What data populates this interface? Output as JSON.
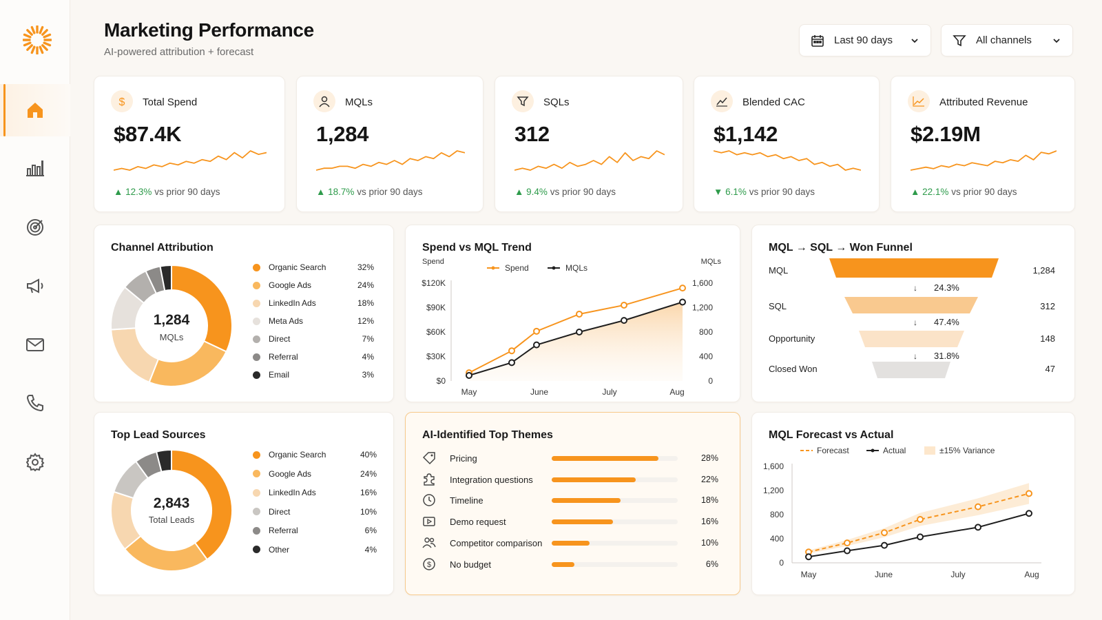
{
  "app": {
    "title": "Marketing Performance",
    "subtitle": "AI-powered attribution + forecast"
  },
  "colors": {
    "accent": "#f7941d",
    "accent_light": "#f9bc64",
    "positive": "#2e9b4b",
    "negative": "#2e9b4b"
  },
  "sidebar": {
    "items": [
      {
        "icon": "home-icon",
        "active": true
      },
      {
        "icon": "bar-chart-icon",
        "active": false
      },
      {
        "icon": "target-icon",
        "active": false
      },
      {
        "icon": "megaphone-icon",
        "active": false
      },
      {
        "icon": "mail-icon",
        "active": false
      },
      {
        "icon": "phone-icon",
        "active": false
      },
      {
        "icon": "gear-icon",
        "active": false
      }
    ]
  },
  "filters": {
    "date_range": "Last 90 days",
    "channel": "All channels"
  },
  "kpis": [
    {
      "label": "Total Spend",
      "value": "$87.4K",
      "direction": "up",
      "delta": "12.3%",
      "delta_suffix": "vs prior 90 days",
      "spark": [
        4,
        5,
        4,
        6,
        5,
        7,
        6,
        8,
        7,
        9,
        8,
        10,
        9,
        12,
        10,
        14,
        11,
        15,
        13,
        14
      ]
    },
    {
      "label": "MQLs",
      "value": "1,284",
      "direction": "up",
      "delta": "18.7%",
      "delta_suffix": "vs prior 90 days",
      "spark": [
        3,
        4,
        4,
        5,
        5,
        4,
        6,
        5,
        7,
        6,
        8,
        6,
        9,
        8,
        10,
        9,
        12,
        10,
        13,
        12
      ]
    },
    {
      "label": "SQLs",
      "value": "312",
      "direction": "up",
      "delta": "9.4%",
      "delta_suffix": "vs prior 90 days",
      "spark": [
        4,
        5,
        4,
        6,
        5,
        7,
        5,
        8,
        6,
        7,
        9,
        7,
        11,
        8,
        13,
        9,
        11,
        10,
        14,
        12
      ]
    },
    {
      "label": "Blended CAC",
      "value": "$1,142",
      "direction": "down",
      "delta": "6.1%",
      "delta_suffix": "vs prior 90 days",
      "spark": [
        14,
        13,
        14,
        12,
        13,
        12,
        13,
        11,
        12,
        10,
        11,
        9,
        10,
        7,
        8,
        6,
        7,
        4,
        5,
        4
      ]
    },
    {
      "label": "Attributed Revenue",
      "value": "$2.19M",
      "direction": "up",
      "delta": "22.1%",
      "delta_suffix": "vs prior 90 days",
      "spark": [
        3,
        4,
        5,
        4,
        6,
        5,
        7,
        6,
        8,
        7,
        6,
        9,
        8,
        10,
        9,
        13,
        10,
        15,
        14,
        16
      ]
    }
  ],
  "channel_attribution": {
    "title": "Channel Attribution",
    "center_value": "1,284",
    "center_label": "MQLs",
    "items": [
      {
        "label": "Organic Search",
        "pct": "32%",
        "value": 32,
        "color": "#f7941d"
      },
      {
        "label": "Google Ads",
        "pct": "24%",
        "value": 24,
        "color": "#f9b85e"
      },
      {
        "label": "LinkedIn Ads",
        "pct": "18%",
        "value": 18,
        "color": "#f7d7b0"
      },
      {
        "label": "Meta Ads",
        "pct": "12%",
        "value": 12,
        "color": "#e6e1dc"
      },
      {
        "label": "Direct",
        "pct": "7%",
        "value": 7,
        "color": "#b3b0ad"
      },
      {
        "label": "Referral",
        "pct": "4%",
        "value": 4,
        "color": "#8c8a88"
      },
      {
        "label": "Email",
        "pct": "3%",
        "value": 3,
        "color": "#2a2a2a"
      }
    ]
  },
  "spend_vs_mql": {
    "title": "Spend vs MQL Trend",
    "left_axis_title": "Spend",
    "right_axis_title": "MQLs",
    "legend": [
      "Spend",
      "MQLs"
    ],
    "x_labels": [
      "May",
      "June",
      "July",
      "Aug"
    ],
    "left_ticks": [
      "$0",
      "$30K",
      "$60K",
      "$90K",
      "$120K"
    ],
    "right_ticks": [
      "0",
      "400",
      "800",
      "1,200",
      "1,600"
    ]
  },
  "funnel": {
    "title": "MQL → SQL → Won Funnel",
    "stages": [
      {
        "label": "MQL",
        "count": "1,284",
        "color": "#f7941d"
      },
      {
        "label": "SQL",
        "count": "312",
        "color": "#f9c98f"
      },
      {
        "label": "Opportunity",
        "count": "148",
        "color": "#fbe3c8"
      },
      {
        "label": "Closed Won",
        "count": "47",
        "color": "#e3e1df"
      }
    ],
    "conversions": [
      "24.3%",
      "47.4%",
      "31.8%"
    ]
  },
  "lead_sources": {
    "title": "Top Lead Sources",
    "center_value": "2,843",
    "center_label": "Total Leads",
    "items": [
      {
        "label": "Organic Search",
        "pct": "40%",
        "value": 40,
        "color": "#f7941d"
      },
      {
        "label": "Google Ads",
        "pct": "24%",
        "value": 24,
        "color": "#f9b85e"
      },
      {
        "label": "LinkedIn Ads",
        "pct": "16%",
        "value": 16,
        "color": "#f7d7b0"
      },
      {
        "label": "Direct",
        "pct": "10%",
        "value": 10,
        "color": "#c9c6c2"
      },
      {
        "label": "Referral",
        "pct": "6%",
        "value": 6,
        "color": "#8c8a88"
      },
      {
        "label": "Other",
        "pct": "4%",
        "value": 4,
        "color": "#2a2a2a"
      }
    ]
  },
  "themes": {
    "title": "AI-Identified Top Themes",
    "items": [
      {
        "label": "Pricing",
        "pct": "28%",
        "value": 28,
        "icon": "tag-icon"
      },
      {
        "label": "Integration questions",
        "pct": "22%",
        "value": 22,
        "icon": "puzzle-icon"
      },
      {
        "label": "Timeline",
        "pct": "18%",
        "value": 18,
        "icon": "clock-icon"
      },
      {
        "label": "Demo request",
        "pct": "16%",
        "value": 16,
        "icon": "play-icon"
      },
      {
        "label": "Competitor comparison",
        "pct": "10%",
        "value": 10,
        "icon": "users-icon"
      },
      {
        "label": "No budget",
        "pct": "6%",
        "value": 6,
        "icon": "dollar-icon"
      }
    ]
  },
  "forecast": {
    "title": "MQL Forecast vs Actual",
    "legend": [
      "Forecast",
      "Actual",
      "±15% Variance"
    ],
    "x_labels": [
      "May",
      "June",
      "July",
      "Aug"
    ],
    "y_ticks": [
      "0",
      "400",
      "800",
      "1,200",
      "1,600"
    ]
  },
  "chart_data": [
    {
      "type": "line",
      "title": "Spend vs MQL Trend",
      "x": [
        "May",
        "Jun",
        "Jun",
        "Jul",
        "Jul",
        "Aug"
      ],
      "x_positions_note": "",
      "series": [
        {
          "name": "Spend",
          "axis": "left",
          "values": [
            10000,
            37000,
            61000,
            82000,
            93000,
            114000
          ]
        },
        {
          "name": "MQLs",
          "axis": "right",
          "values": [
            90,
            300,
            590,
            800,
            990,
            1290
          ]
        }
      ],
      "ylim_left": [
        0,
        120000
      ],
      "ylim_right": [
        0,
        1600
      ],
      "ylabel_left": "Spend",
      "ylabel_right": "MQLs"
    },
    {
      "type": "line",
      "title": "MQL Forecast vs Actual",
      "x": [
        "May",
        "Jun",
        "Jun",
        "Jul",
        "Jul",
        "Aug"
      ],
      "series": [
        {
          "name": "Forecast",
          "values": [
            180,
            330,
            500,
            720,
            930,
            1150
          ]
        },
        {
          "name": "Actual",
          "values": [
            100,
            200,
            290,
            430,
            590,
            820
          ]
        }
      ],
      "band": {
        "name": "±15% Variance",
        "pct": 15
      },
      "ylim": [
        0,
        1600
      ]
    }
  ]
}
